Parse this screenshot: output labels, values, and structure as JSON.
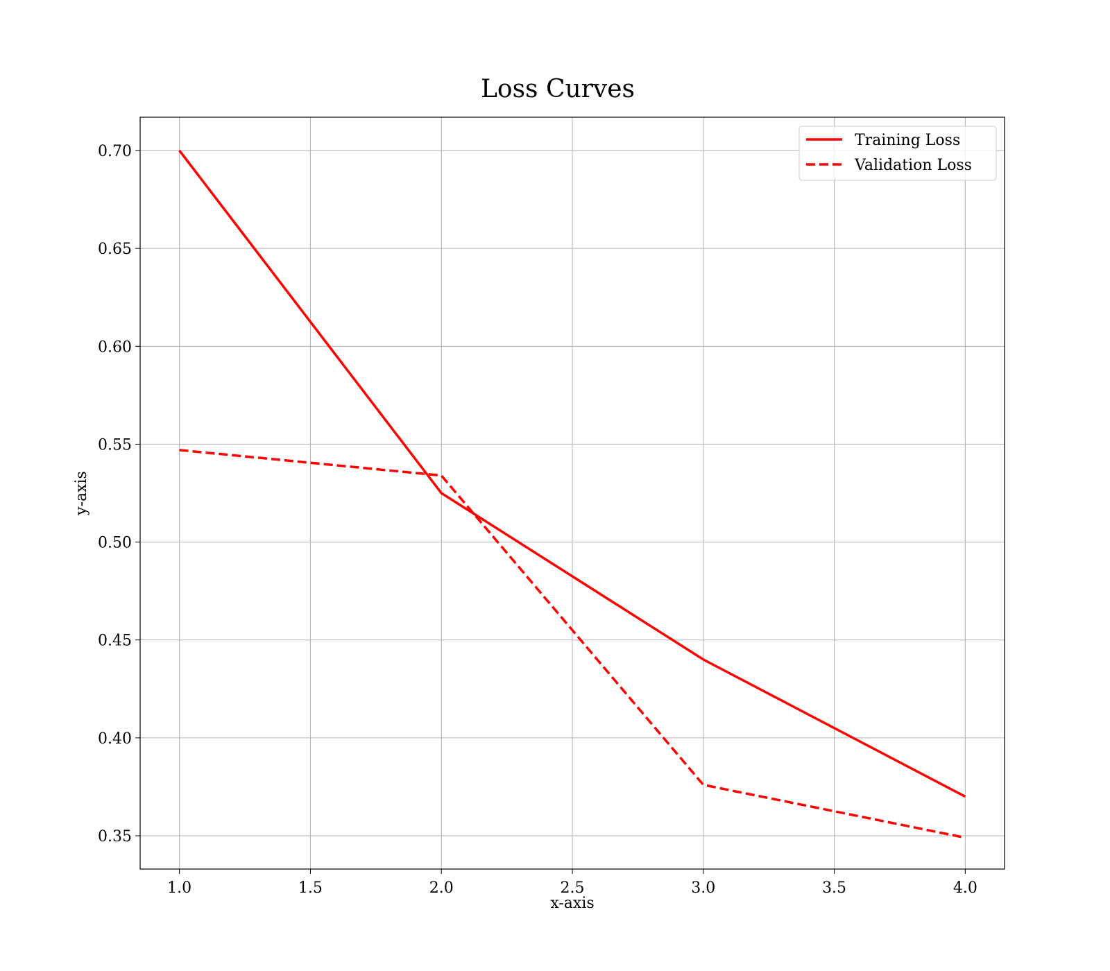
{
  "chart_data": {
    "type": "line",
    "title": "Loss Curves",
    "xlabel": "x-axis",
    "ylabel": "y-axis",
    "x": [
      1,
      2,
      3,
      4
    ],
    "xlim": [
      0.85,
      4.15
    ],
    "ylim": [
      0.333,
      0.717
    ],
    "xticks": [
      1.0,
      1.5,
      2.0,
      2.5,
      3.0,
      3.5,
      4.0
    ],
    "xtick_labels": [
      "1.0",
      "1.5",
      "2.0",
      "2.5",
      "3.0",
      "3.5",
      "4.0"
    ],
    "yticks": [
      0.35,
      0.4,
      0.45,
      0.5,
      0.55,
      0.6,
      0.65,
      0.7
    ],
    "ytick_labels": [
      "0.35",
      "0.40",
      "0.45",
      "0.50",
      "0.55",
      "0.60",
      "0.65",
      "0.70"
    ],
    "grid": true,
    "legend_position": "top-right",
    "series": [
      {
        "name": "Training Loss",
        "values": [
          0.7,
          0.525,
          0.44,
          0.37
        ],
        "color": "#ff0000",
        "style": "solid"
      },
      {
        "name": "Validation Loss",
        "values": [
          0.547,
          0.534,
          0.376,
          0.349
        ],
        "color": "#ff0000",
        "style": "dashed"
      }
    ]
  }
}
